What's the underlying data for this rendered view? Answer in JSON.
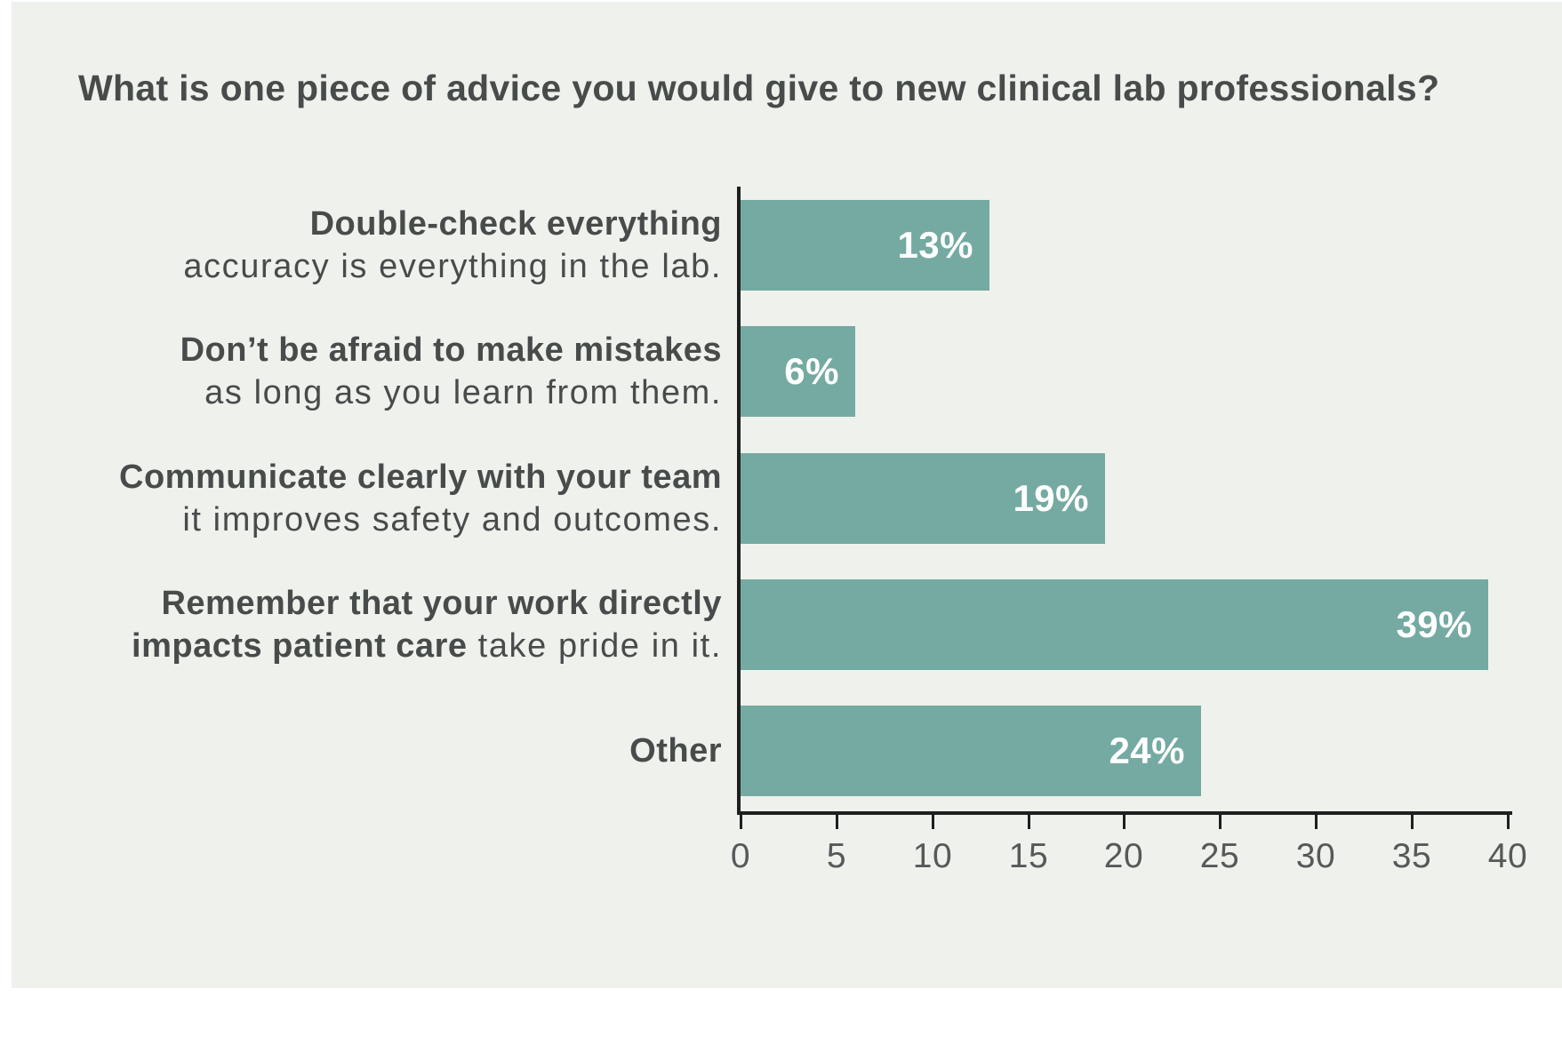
{
  "title": "What is one piece of advice you would give to new clinical lab professionals?",
  "chart_data": {
    "type": "bar",
    "orientation": "horizontal",
    "title": "What is one piece of advice you would give to new clinical lab professionals?",
    "categories": [
      {
        "name": "double-check-everything",
        "lines": [
          [
            {
              "t": "Double-check everything",
              "b": true
            }
          ],
          [
            {
              "t": "accuracy is everything in the lab.",
              "b": false
            }
          ]
        ]
      },
      {
        "name": "dont-be-afraid-to-make-mistakes",
        "lines": [
          [
            {
              "t": "Don’t be afraid to make mistakes",
              "b": true
            }
          ],
          [
            {
              "t": "as long as you learn from them.",
              "b": false
            }
          ]
        ]
      },
      {
        "name": "communicate-clearly-with-your-team",
        "lines": [
          [
            {
              "t": "Communicate clearly with your team",
              "b": true
            }
          ],
          [
            {
              "t": "it improves safety and outcomes.",
              "b": false
            }
          ]
        ]
      },
      {
        "name": "remember-work-impacts-patient-care",
        "lines": [
          [
            {
              "t": "Remember that your work directly",
              "b": true
            }
          ],
          [
            {
              "t": "impacts patient care",
              "b": true
            },
            {
              "t": " take pride in it.",
              "b": false
            }
          ]
        ]
      },
      {
        "name": "other",
        "lines": [
          [
            {
              "t": "Other",
              "b": true
            }
          ]
        ]
      }
    ],
    "values": [
      13,
      6,
      19,
      39,
      24
    ],
    "value_labels": [
      "13%",
      "6%",
      "19%",
      "39%",
      "24%"
    ],
    "xlim": [
      0,
      40
    ],
    "x_ticks": [
      "0",
      "5",
      "10",
      "15",
      "20",
      "25",
      "30",
      "35",
      "40"
    ],
    "grid": "off",
    "legend": "none",
    "colors": {
      "bar": "#74aaa2",
      "value_label": "#ffffff",
      "panel_background": "#eff1ed",
      "page_background": "#ffffff",
      "text": "#474c4b",
      "axis": "#1e201f",
      "tick_label": "#555a59"
    }
  }
}
